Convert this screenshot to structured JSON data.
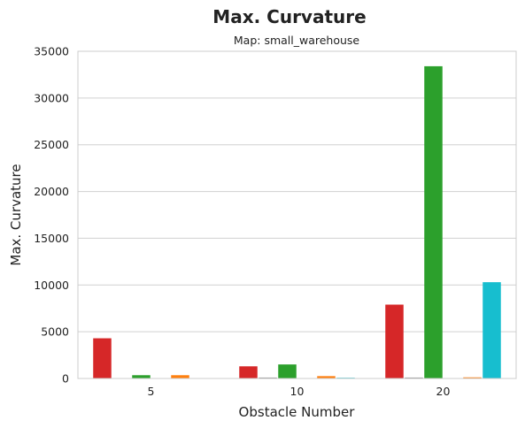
{
  "chart_data": {
    "type": "bar",
    "title": "Max. Curvature",
    "subtitle": "Map: small_warehouse",
    "xlabel": "Obstacle Number",
    "ylabel": "Max. Curvature",
    "categories": [
      "5",
      "10",
      "20"
    ],
    "ylim": [
      0,
      35000
    ],
    "yticks": [
      "0",
      "5000",
      "10000",
      "15000",
      "20000",
      "25000",
      "30000",
      "35000"
    ],
    "grid": true,
    "legend": "none",
    "series": [
      {
        "color": "#d62728",
        "values": [
          4300,
          1300,
          7900
        ]
      },
      {
        "color": "#8c8c8c",
        "values": [
          0,
          100,
          100
        ]
      },
      {
        "color": "#2ca02c",
        "values": [
          350,
          1500,
          33400
        ]
      },
      {
        "color": "#9467bd",
        "values": [
          0,
          0,
          0
        ]
      },
      {
        "color": "#ff7f0e",
        "values": [
          350,
          250,
          120
        ]
      },
      {
        "color": "#17becf",
        "values": [
          0,
          80,
          10300
        ]
      }
    ]
  }
}
